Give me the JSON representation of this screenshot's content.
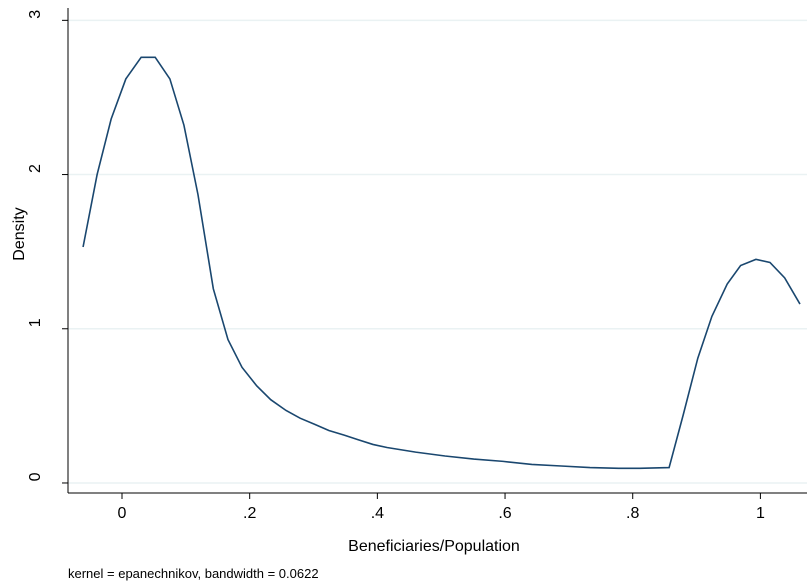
{
  "chart_data": {
    "type": "line",
    "x_label": "Beneficiaries/Population",
    "y_label": "Density",
    "note": "kernel = epanechnikov, bandwidth = 0.0622",
    "x": [
      -0.061,
      -0.039,
      -0.017,
      0.006,
      0.03,
      0.052,
      0.075,
      0.097,
      0.119,
      0.143,
      0.166,
      0.188,
      0.211,
      0.233,
      0.257,
      0.279,
      0.302,
      0.324,
      0.348,
      0.37,
      0.393,
      0.415,
      0.46,
      0.506,
      0.551,
      0.597,
      0.642,
      0.688,
      0.733,
      0.778,
      0.811,
      0.857,
      0.879,
      0.902,
      0.924,
      0.948,
      0.969,
      0.993,
      1.015,
      1.038,
      1.062
    ],
    "series": [
      {
        "name": "Density",
        "color": "#1a476f",
        "values": [
          1.53,
          2.0,
          2.36,
          2.62,
          2.76,
          2.76,
          2.62,
          2.32,
          1.87,
          1.26,
          0.93,
          0.75,
          0.63,
          0.54,
          0.47,
          0.42,
          0.38,
          0.34,
          0.31,
          0.28,
          0.25,
          0.23,
          0.2,
          0.175,
          0.155,
          0.14,
          0.12,
          0.11,
          0.1,
          0.095,
          0.095,
          0.1,
          0.44,
          0.81,
          1.08,
          1.29,
          1.41,
          1.45,
          1.43,
          1.33,
          1.16
        ]
      }
    ],
    "xlim": [
      -0.0846,
      1.073
    ],
    "ylim": [
      -0.065,
      3.08
    ],
    "xticks": [
      0,
      {
        "value": 0.2,
        "label": ".2"
      },
      {
        "value": 0.4,
        "label": ".4"
      },
      {
        "value": 0.6,
        "label": ".6"
      },
      {
        "value": 0.8,
        "label": ".8"
      },
      1
    ],
    "yticks": [
      0,
      1,
      2,
      3
    ],
    "grid": true
  }
}
